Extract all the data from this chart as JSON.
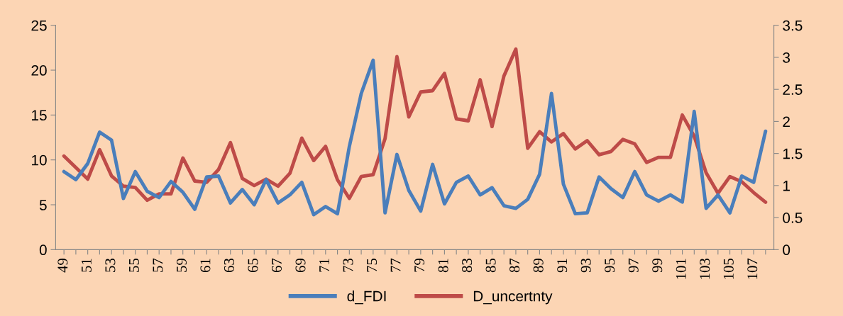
{
  "chart_data": {
    "type": "line",
    "categories": [
      "49",
      null,
      "51",
      null,
      "53",
      null,
      "55",
      null,
      "57",
      null,
      "59",
      null,
      "61",
      null,
      "63",
      null,
      "65",
      null,
      "67",
      null,
      "69",
      null,
      "71",
      null,
      "73",
      null,
      "75",
      null,
      "77",
      null,
      "79",
      null,
      "81",
      null,
      "83",
      null,
      "85",
      null,
      "87",
      null,
      "89",
      null,
      "91",
      null,
      "93",
      null,
      "95",
      null,
      "97",
      null,
      "99",
      null,
      "101",
      null,
      "103",
      null,
      "105",
      null,
      "107",
      null
    ],
    "series": [
      {
        "name": "d_FDI",
        "color": "#4a7ebb",
        "values": [
          8.7,
          7.8,
          9.6,
          13.1,
          12.2,
          5.7,
          8.7,
          6.5,
          5.8,
          7.6,
          6.4,
          4.5,
          8.1,
          8.2,
          5.2,
          6.7,
          5.0,
          7.8,
          5.2,
          6.1,
          7.5,
          3.9,
          4.8,
          4.0,
          11.5,
          17.4,
          21.1,
          4.1,
          10.6,
          6.6,
          4.3,
          9.5,
          5.1,
          7.5,
          8.2,
          6.1,
          6.9,
          4.9,
          4.6,
          5.6,
          8.4,
          17.4,
          7.3,
          4.0,
          4.1,
          8.1,
          6.8,
          5.8,
          8.7,
          6.1,
          5.4,
          6.1,
          5.3,
          15.4,
          4.6,
          6.1,
          4.1,
          8.2,
          7.5,
          13.2
        ]
      },
      {
        "name": "D_uncertnty",
        "color": "#be4b48",
        "axis": "y2",
        "values": [
          1.46,
          1.28,
          1.1,
          1.56,
          1.15,
          0.99,
          0.97,
          0.77,
          0.87,
          0.87,
          1.43,
          1.07,
          1.05,
          1.25,
          1.67,
          1.11,
          1.0,
          1.1,
          0.99,
          1.19,
          1.74,
          1.39,
          1.61,
          1.09,
          0.8,
          1.14,
          1.17,
          1.73,
          3.01,
          2.07,
          2.46,
          2.48,
          2.75,
          2.04,
          2.01,
          2.65,
          1.92,
          2.71,
          3.13,
          1.58,
          1.84,
          1.68,
          1.81,
          1.57,
          1.7,
          1.48,
          1.53,
          1.72,
          1.65,
          1.36,
          1.44,
          1.44,
          2.1,
          1.77,
          1.2,
          0.88,
          1.14,
          1.06,
          0.89,
          0.74
        ]
      }
    ],
    "ylim": [
      0,
      25
    ],
    "yticks": [
      0,
      5,
      10,
      15,
      20,
      25
    ],
    "y2lim": [
      0,
      3.5
    ],
    "y2ticks": [
      0,
      0.5,
      1,
      1.5,
      2,
      2.5,
      3,
      3.5
    ],
    "legend": "bottom",
    "grid": false,
    "marker": "none",
    "line_style": "solid"
  }
}
